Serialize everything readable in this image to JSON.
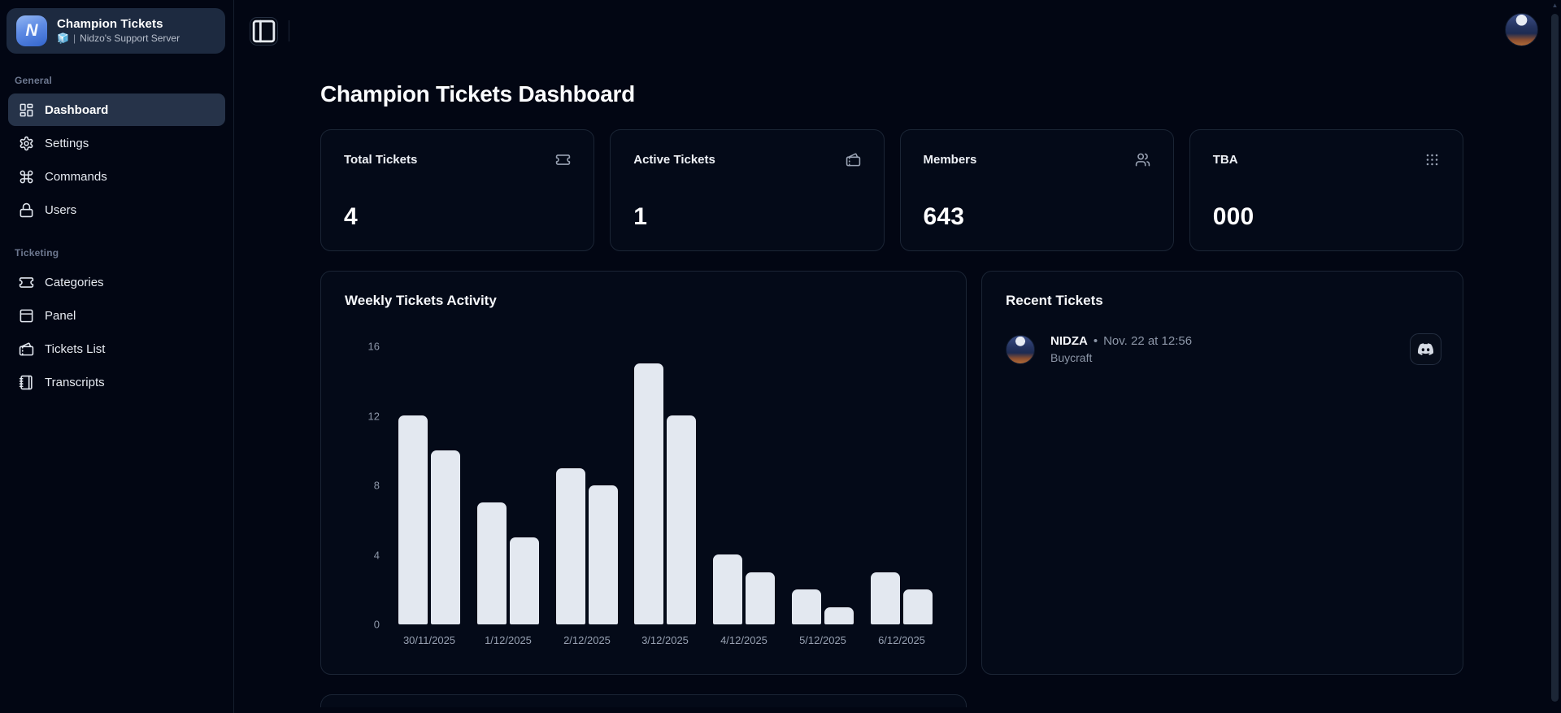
{
  "app": {
    "name": "Champion Tickets",
    "logo_letter": "N",
    "server_icon": "🧊",
    "server_separator": "|",
    "server_name": "Nidzo's Support Server"
  },
  "sidebar": {
    "sections": [
      {
        "label": "General",
        "items": [
          {
            "label": "Dashboard",
            "icon": "layout-dashboard-icon",
            "active": true
          },
          {
            "label": "Settings",
            "icon": "gear-icon",
            "active": false
          },
          {
            "label": "Commands",
            "icon": "command-icon",
            "active": false
          },
          {
            "label": "Users",
            "icon": "lock-icon",
            "active": false
          }
        ]
      },
      {
        "label": "Ticketing",
        "items": [
          {
            "label": "Categories",
            "icon": "ticket-icon",
            "active": false
          },
          {
            "label": "Panel",
            "icon": "panel-top-icon",
            "active": false
          },
          {
            "label": "Tickets List",
            "icon": "tickets-icon",
            "active": false
          },
          {
            "label": "Transcripts",
            "icon": "notebook-icon",
            "active": false
          }
        ]
      }
    ]
  },
  "topbar": {
    "toggle_icon": "panel-left-icon"
  },
  "page": {
    "title": "Champion Tickets Dashboard"
  },
  "stats": [
    {
      "label": "Total Tickets",
      "value": "4",
      "icon": "ticket-icon"
    },
    {
      "label": "Active Tickets",
      "value": "1",
      "icon": "tickets-icon"
    },
    {
      "label": "Members",
      "value": "643",
      "icon": "users-icon"
    },
    {
      "label": "TBA",
      "value": "000",
      "icon": "grip-dots-icon"
    }
  ],
  "chart_card": {
    "title": "Weekly Tickets Activity"
  },
  "chart_data": {
    "type": "bar",
    "title": "Weekly Tickets Activity",
    "categories": [
      "30/11/2025",
      "1/12/2025",
      "2/12/2025",
      "3/12/2025",
      "4/12/2025",
      "5/12/2025",
      "6/12/2025"
    ],
    "series": [
      {
        "name": "bar-1",
        "values": [
          12,
          7,
          9,
          15,
          4,
          2,
          3
        ]
      },
      {
        "name": "bar-2",
        "values": [
          10,
          5,
          8,
          12,
          3,
          1,
          2
        ]
      }
    ],
    "ylim": [
      0,
      16
    ],
    "yticks": [
      0,
      4,
      8,
      12,
      16
    ],
    "grid": false,
    "legend": false,
    "bar_color": "#e3e8f0"
  },
  "recent": {
    "title": "Recent Tickets",
    "tickets": [
      {
        "user": "NIDZA",
        "separator": "•",
        "timestamp": "Nov. 22 at 12:56",
        "subject": "Buycraft",
        "action_icon": "discord-icon"
      }
    ]
  },
  "colors": {
    "page_bg": "#020613",
    "card_bg": "#040a18",
    "card_border": "#1b2535",
    "sidebar_tile_bg": "#1d2a40",
    "active_item_bg": "#263349",
    "text_muted": "#8d97a8",
    "bar_fill": "#e3e8f0",
    "logo_gradient_from": "#93b7f3",
    "logo_gradient_to": "#3365cd"
  }
}
